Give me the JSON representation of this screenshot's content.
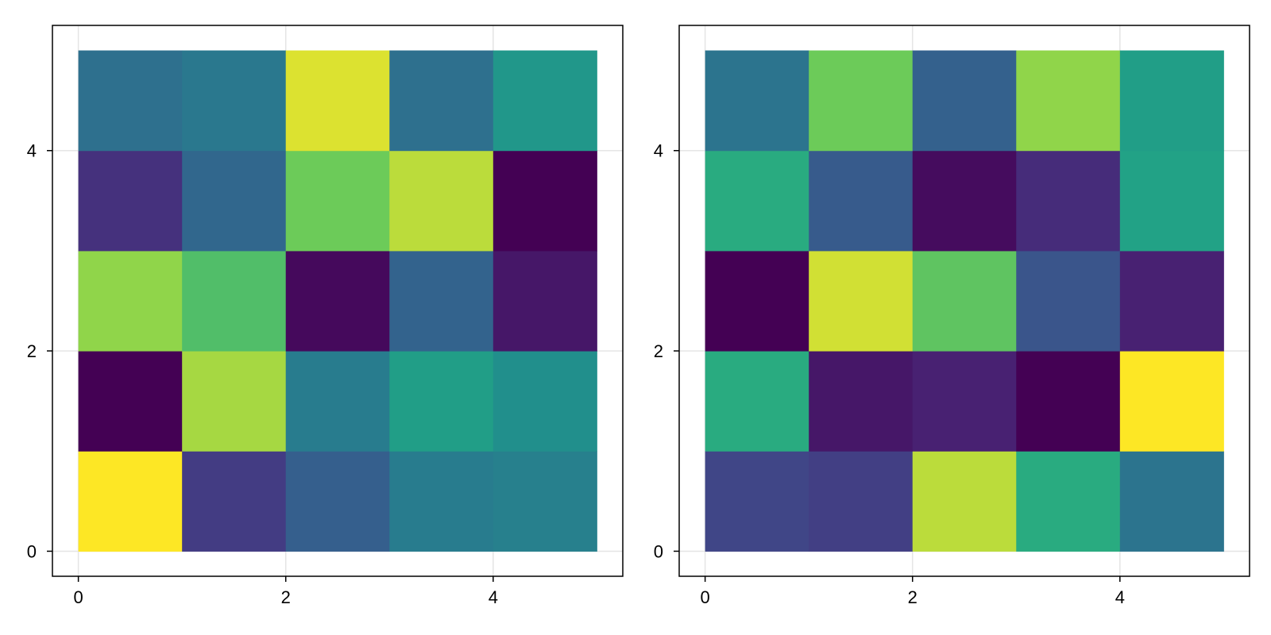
{
  "chart_data": [
    {
      "type": "heatmap",
      "colormap": "viridis",
      "value_range": [
        0,
        1
      ],
      "x_edges": [
        0,
        1,
        2,
        3,
        4,
        5
      ],
      "y_edges": [
        0,
        1,
        2,
        3,
        4,
        5
      ],
      "xlim": [
        -0.25,
        5.25
      ],
      "ylim": [
        -0.25,
        5.25
      ],
      "x_ticks": [
        0,
        2,
        4
      ],
      "y_ticks": [
        0,
        2,
        4
      ],
      "x_tick_labels": [
        "0",
        "2",
        "4"
      ],
      "y_tick_labels": [
        "0",
        "2",
        "4"
      ],
      "grid": true,
      "values": [
        [
          1.0,
          0.22,
          0.38,
          0.52,
          0.54
        ],
        [
          0.0,
          0.92,
          0.52,
          0.7,
          0.62
        ],
        [
          0.9,
          0.82,
          0.03,
          0.4,
          0.08
        ],
        [
          0.18,
          0.42,
          0.86,
          0.94,
          0.0
        ],
        [
          0.46,
          0.5,
          0.97,
          0.46,
          0.66
        ]
      ]
    },
    {
      "type": "heatmap",
      "colormap": "viridis",
      "value_range": [
        0,
        1
      ],
      "x_edges": [
        0,
        1,
        2,
        3,
        4,
        5
      ],
      "y_edges": [
        0,
        1,
        2,
        3,
        4,
        5
      ],
      "xlim": [
        -0.25,
        5.25
      ],
      "ylim": [
        -0.25,
        5.25
      ],
      "x_ticks": [
        0,
        2,
        4
      ],
      "y_ticks": [
        0,
        2,
        4
      ],
      "x_tick_labels": [
        "0",
        "2",
        "4"
      ],
      "y_tick_labels": [
        "0",
        "2",
        "4"
      ],
      "grid": true,
      "values": [
        [
          0.26,
          0.23,
          0.94,
          0.76,
          0.48
        ],
        [
          0.76,
          0.08,
          0.12,
          0.0,
          1.0
        ],
        [
          0.0,
          0.96,
          0.84,
          0.33,
          0.12
        ],
        [
          0.76,
          0.36,
          0.04,
          0.16,
          0.72
        ],
        [
          0.48,
          0.86,
          0.39,
          0.9,
          0.7
        ]
      ]
    }
  ]
}
